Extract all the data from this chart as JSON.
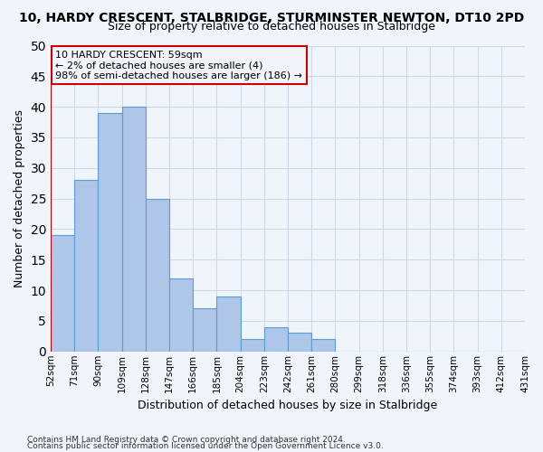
{
  "title": "10, HARDY CRESCENT, STALBRIDGE, STURMINSTER NEWTON, DT10 2PD",
  "subtitle": "Size of property relative to detached houses in Stalbridge",
  "xlabel": "Distribution of detached houses by size in Stalbridge",
  "ylabel": "Number of detached properties",
  "bar_values": [
    19,
    28,
    39,
    40,
    25,
    12,
    7,
    9,
    2,
    4,
    3,
    2,
    0,
    0,
    0,
    0,
    0,
    0,
    0,
    0
  ],
  "bin_labels": [
    "52sqm",
    "71sqm",
    "90sqm",
    "109sqm",
    "128sqm",
    "147sqm",
    "166sqm",
    "185sqm",
    "204sqm",
    "223sqm",
    "242sqm",
    "261sqm",
    "280sqm",
    "299sqm",
    "318sqm",
    "336sqm",
    "355sqm",
    "374sqm",
    "393sqm",
    "412sqm",
    "431sqm"
  ],
  "bar_color": "#aec6e8",
  "bar_edge_color": "#5a9fd4",
  "grid_color": "#d0d8e8",
  "annotation_box_color": "#cc0000",
  "annotation_text": "10 HARDY CRESCENT: 59sqm\n← 2% of detached houses are smaller (4)\n98% of semi-detached houses are larger (186) →",
  "ylim": [
    0,
    50
  ],
  "yticks": [
    0,
    5,
    10,
    15,
    20,
    25,
    30,
    35,
    40,
    45,
    50
  ],
  "footer1": "Contains HM Land Registry data © Crown copyright and database right 2024.",
  "footer2": "Contains public sector information licensed under the Open Government Licence v3.0.",
  "bg_color": "#f0f4fb"
}
